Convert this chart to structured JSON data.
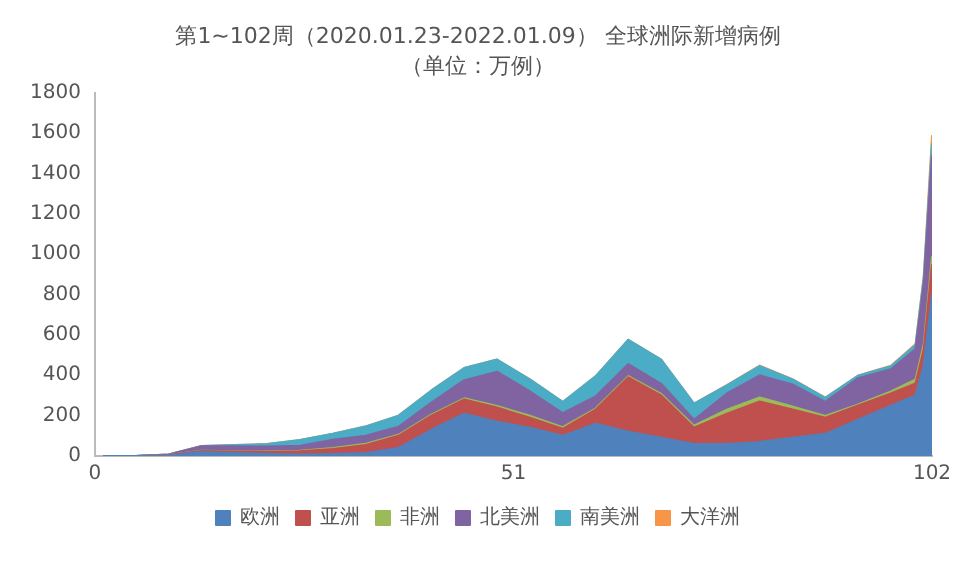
{
  "chart_data": {
    "type": "area",
    "stacked": true,
    "title": "第1~102周（2020.01.23-2022.01.09） 全球洲际新增病例",
    "subtitle": "（单位：万例）",
    "x": [
      1,
      5,
      9,
      13,
      17,
      21,
      25,
      29,
      33,
      37,
      41,
      45,
      49,
      53,
      57,
      61,
      65,
      69,
      73,
      77,
      81,
      85,
      89,
      93,
      97,
      100,
      101,
      102
    ],
    "xlim": [
      0,
      102
    ],
    "xticks": [
      0,
      51,
      102
    ],
    "ylim": [
      0,
      1800
    ],
    "yticks": [
      0,
      200,
      400,
      600,
      800,
      1000,
      1200,
      1400,
      1600,
      1800
    ],
    "grid": false,
    "legend": "bottom",
    "series": [
      {
        "name": "欧洲",
        "color": "#4f81bd",
        "values": [
          0,
          0,
          3,
          20,
          15,
          10,
          8,
          10,
          15,
          40,
          130,
          210,
          170,
          140,
          100,
          160,
          120,
          90,
          60,
          60,
          70,
          90,
          110,
          180,
          250,
          300,
          450,
          800
        ]
      },
      {
        "name": "亚洲",
        "color": "#c0504d",
        "values": [
          0.1,
          0.5,
          2,
          5,
          7,
          10,
          15,
          25,
          40,
          60,
          70,
          70,
          70,
          50,
          35,
          70,
          270,
          210,
          80,
          150,
          200,
          140,
          80,
          70,
          60,
          60,
          80,
          150
        ]
      },
      {
        "name": "非洲",
        "color": "#9bbb59",
        "values": [
          0,
          0,
          0,
          1,
          1,
          2,
          3,
          5,
          6,
          5,
          5,
          6,
          8,
          10,
          8,
          5,
          6,
          8,
          10,
          20,
          20,
          15,
          8,
          6,
          10,
          20,
          25,
          40
        ]
      },
      {
        "name": "北美洲",
        "color": "#8064a2",
        "values": [
          0,
          0,
          3,
          22,
          25,
          25,
          25,
          40,
          40,
          40,
          60,
          90,
          170,
          120,
          70,
          60,
          60,
          50,
          30,
          80,
          110,
          110,
          70,
          130,
          110,
          150,
          300,
          500
        ]
      },
      {
        "name": "南美洲",
        "color": "#4bacc6",
        "values": [
          0,
          0,
          0,
          2,
          6,
          12,
          28,
          30,
          45,
          55,
          60,
          60,
          60,
          60,
          55,
          100,
          120,
          120,
          80,
          40,
          45,
          25,
          20,
          12,
          15,
          20,
          30,
          60
        ]
      },
      {
        "name": "大洋洲",
        "color": "#f79646",
        "values": [
          0,
          0,
          0,
          0,
          0,
          0,
          0,
          0,
          1,
          0,
          0,
          0,
          0,
          0,
          0,
          0,
          0,
          0,
          0,
          1,
          3,
          1,
          1,
          1,
          2,
          5,
          10,
          40
        ]
      }
    ]
  }
}
